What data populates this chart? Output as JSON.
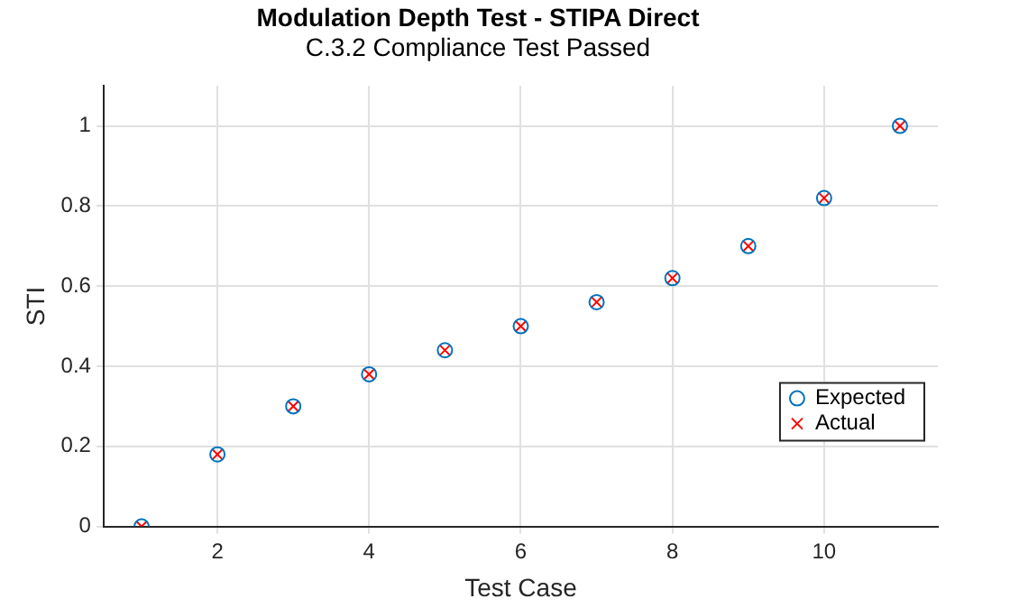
{
  "chart_data": {
    "type": "scatter",
    "title": "Modulation Depth Test - STIPA Direct",
    "subtitle": "C.3.2 Compliance Test Passed",
    "xlabel": "Test Case",
    "ylabel": "STI",
    "x": [
      1,
      2,
      3,
      4,
      5,
      6,
      7,
      8,
      9,
      10,
      11
    ],
    "series": [
      {
        "name": "Expected",
        "color": "#0072bd",
        "marker": "circle",
        "values": [
          0,
          0.18,
          0.3,
          0.38,
          0.44,
          0.5,
          0.56,
          0.62,
          0.7,
          0.82,
          1
        ]
      },
      {
        "name": "Actual",
        "color": "#ff0000",
        "marker": "cross",
        "values": [
          0,
          0.18,
          0.3,
          0.38,
          0.44,
          0.5,
          0.56,
          0.62,
          0.7,
          0.82,
          1
        ]
      }
    ],
    "xlim": [
      0.5,
      11.5
    ],
    "xticks": [
      2,
      4,
      6,
      8,
      10
    ],
    "ylim": [
      0,
      1.1
    ],
    "yticks": [
      0,
      0.2,
      0.4,
      0.6,
      0.8,
      1
    ],
    "grid": true,
    "legend": "bottom right"
  }
}
